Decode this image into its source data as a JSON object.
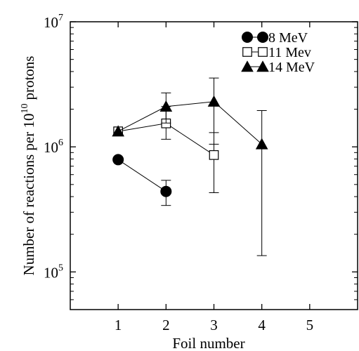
{
  "chart_data": {
    "type": "scatter",
    "title": "",
    "xlabel": "Foil number",
    "ylabel": "Number of reactions per 10",
    "ylabel_superscript": "10",
    "ylabel_suffix": "protons",
    "xlim": [
      0,
      6
    ],
    "ylim": [
      50000,
      10000000
    ],
    "yscale": "log",
    "grid": false,
    "legend_position": "top-right",
    "x_ticks": [
      {
        "value": 1,
        "label": "1"
      },
      {
        "value": 2,
        "label": "2"
      },
      {
        "value": 3,
        "label": "3"
      },
      {
        "value": 4,
        "label": "4"
      },
      {
        "value": 5,
        "label": "5"
      }
    ],
    "y_ticks": [
      {
        "value": 100000,
        "base": "10",
        "exp": "5"
      },
      {
        "value": 1000000,
        "base": "10",
        "exp": "6"
      },
      {
        "value": 10000000,
        "base": "10",
        "exp": "7"
      }
    ],
    "series": [
      {
        "name": "8 MeV",
        "marker": "circle-filled",
        "points": [
          {
            "x": 1,
            "y": 790000
          },
          {
            "x": 2,
            "y": 440000,
            "err_low": 340000,
            "err_high": 540000
          }
        ]
      },
      {
        "name": "11 Mev",
        "marker": "square-open",
        "points": [
          {
            "x": 1,
            "y": 1330000
          },
          {
            "x": 2,
            "y": 1540000,
            "err_low": 1150000,
            "err_high": 2100000
          },
          {
            "x": 3,
            "y": 860000,
            "err_low": 430000,
            "err_high": 1300000
          }
        ]
      },
      {
        "name": "14 MeV",
        "marker": "triangle-filled",
        "points": [
          {
            "x": 1,
            "y": 1330000
          },
          {
            "x": 2,
            "y": 2100000,
            "err_low": 1550000,
            "err_high": 2700000
          },
          {
            "x": 3,
            "y": 2300000,
            "err_low": 1050000,
            "err_high": 3550000
          },
          {
            "x": 4,
            "y": 1050000,
            "err_low": 135000,
            "err_high": 1950000
          }
        ]
      }
    ]
  }
}
